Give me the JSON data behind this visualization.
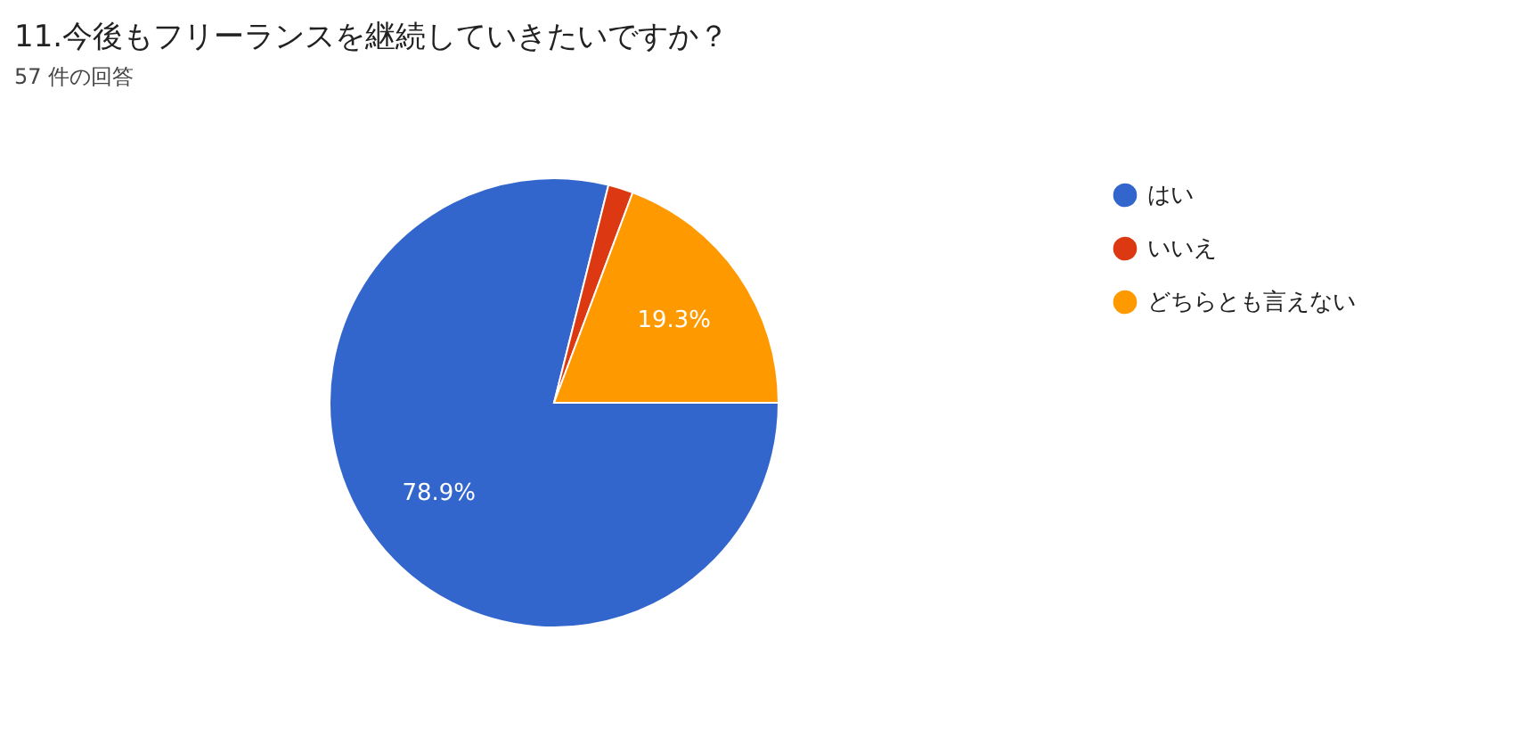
{
  "chart_data": {
    "type": "pie",
    "title": "11.今後もフリーランスを継続していきたいですか？",
    "subtitle": "57 件の回答",
    "categories": [
      "はい",
      "いいえ",
      "どちらとも言えない"
    ],
    "values": [
      78.9,
      1.8,
      19.3
    ],
    "colors": [
      "#3366cc",
      "#dc3912",
      "#ff9900"
    ],
    "value_labels": [
      "78.9%",
      null,
      "19.3%"
    ],
    "legend": "right"
  }
}
